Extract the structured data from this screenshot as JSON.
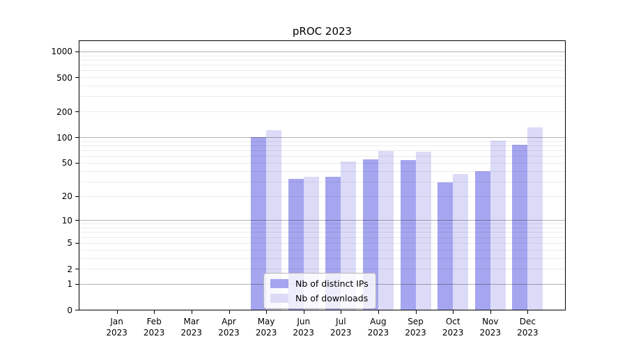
{
  "title": "pROC 2023",
  "chart_data": {
    "type": "bar",
    "title": "pROC 2023",
    "scale": "log1p",
    "grid": true,
    "categories": [
      "Jan",
      "Feb",
      "Mar",
      "Apr",
      "May",
      "Jun",
      "Jul",
      "Aug",
      "Sep",
      "Oct",
      "Nov",
      "Dec"
    ],
    "year": "2023",
    "series": [
      {
        "name": "Nb of distinct IPs",
        "color": "#a5a5f0",
        "values": [
          0,
          0,
          0,
          0,
          100,
          32,
          34,
          55,
          54,
          29,
          40,
          81
        ]
      },
      {
        "name": "Nb of downloads",
        "color": "#dbdbf8",
        "values": [
          0,
          0,
          0,
          0,
          120,
          34,
          52,
          69,
          67,
          37,
          91,
          130
        ]
      }
    ],
    "yticks": [
      0,
      1,
      2,
      5,
      10,
      20,
      50,
      100,
      200,
      500,
      1000
    ],
    "ylim": [
      0,
      1320
    ],
    "legend_position": "lower center"
  }
}
